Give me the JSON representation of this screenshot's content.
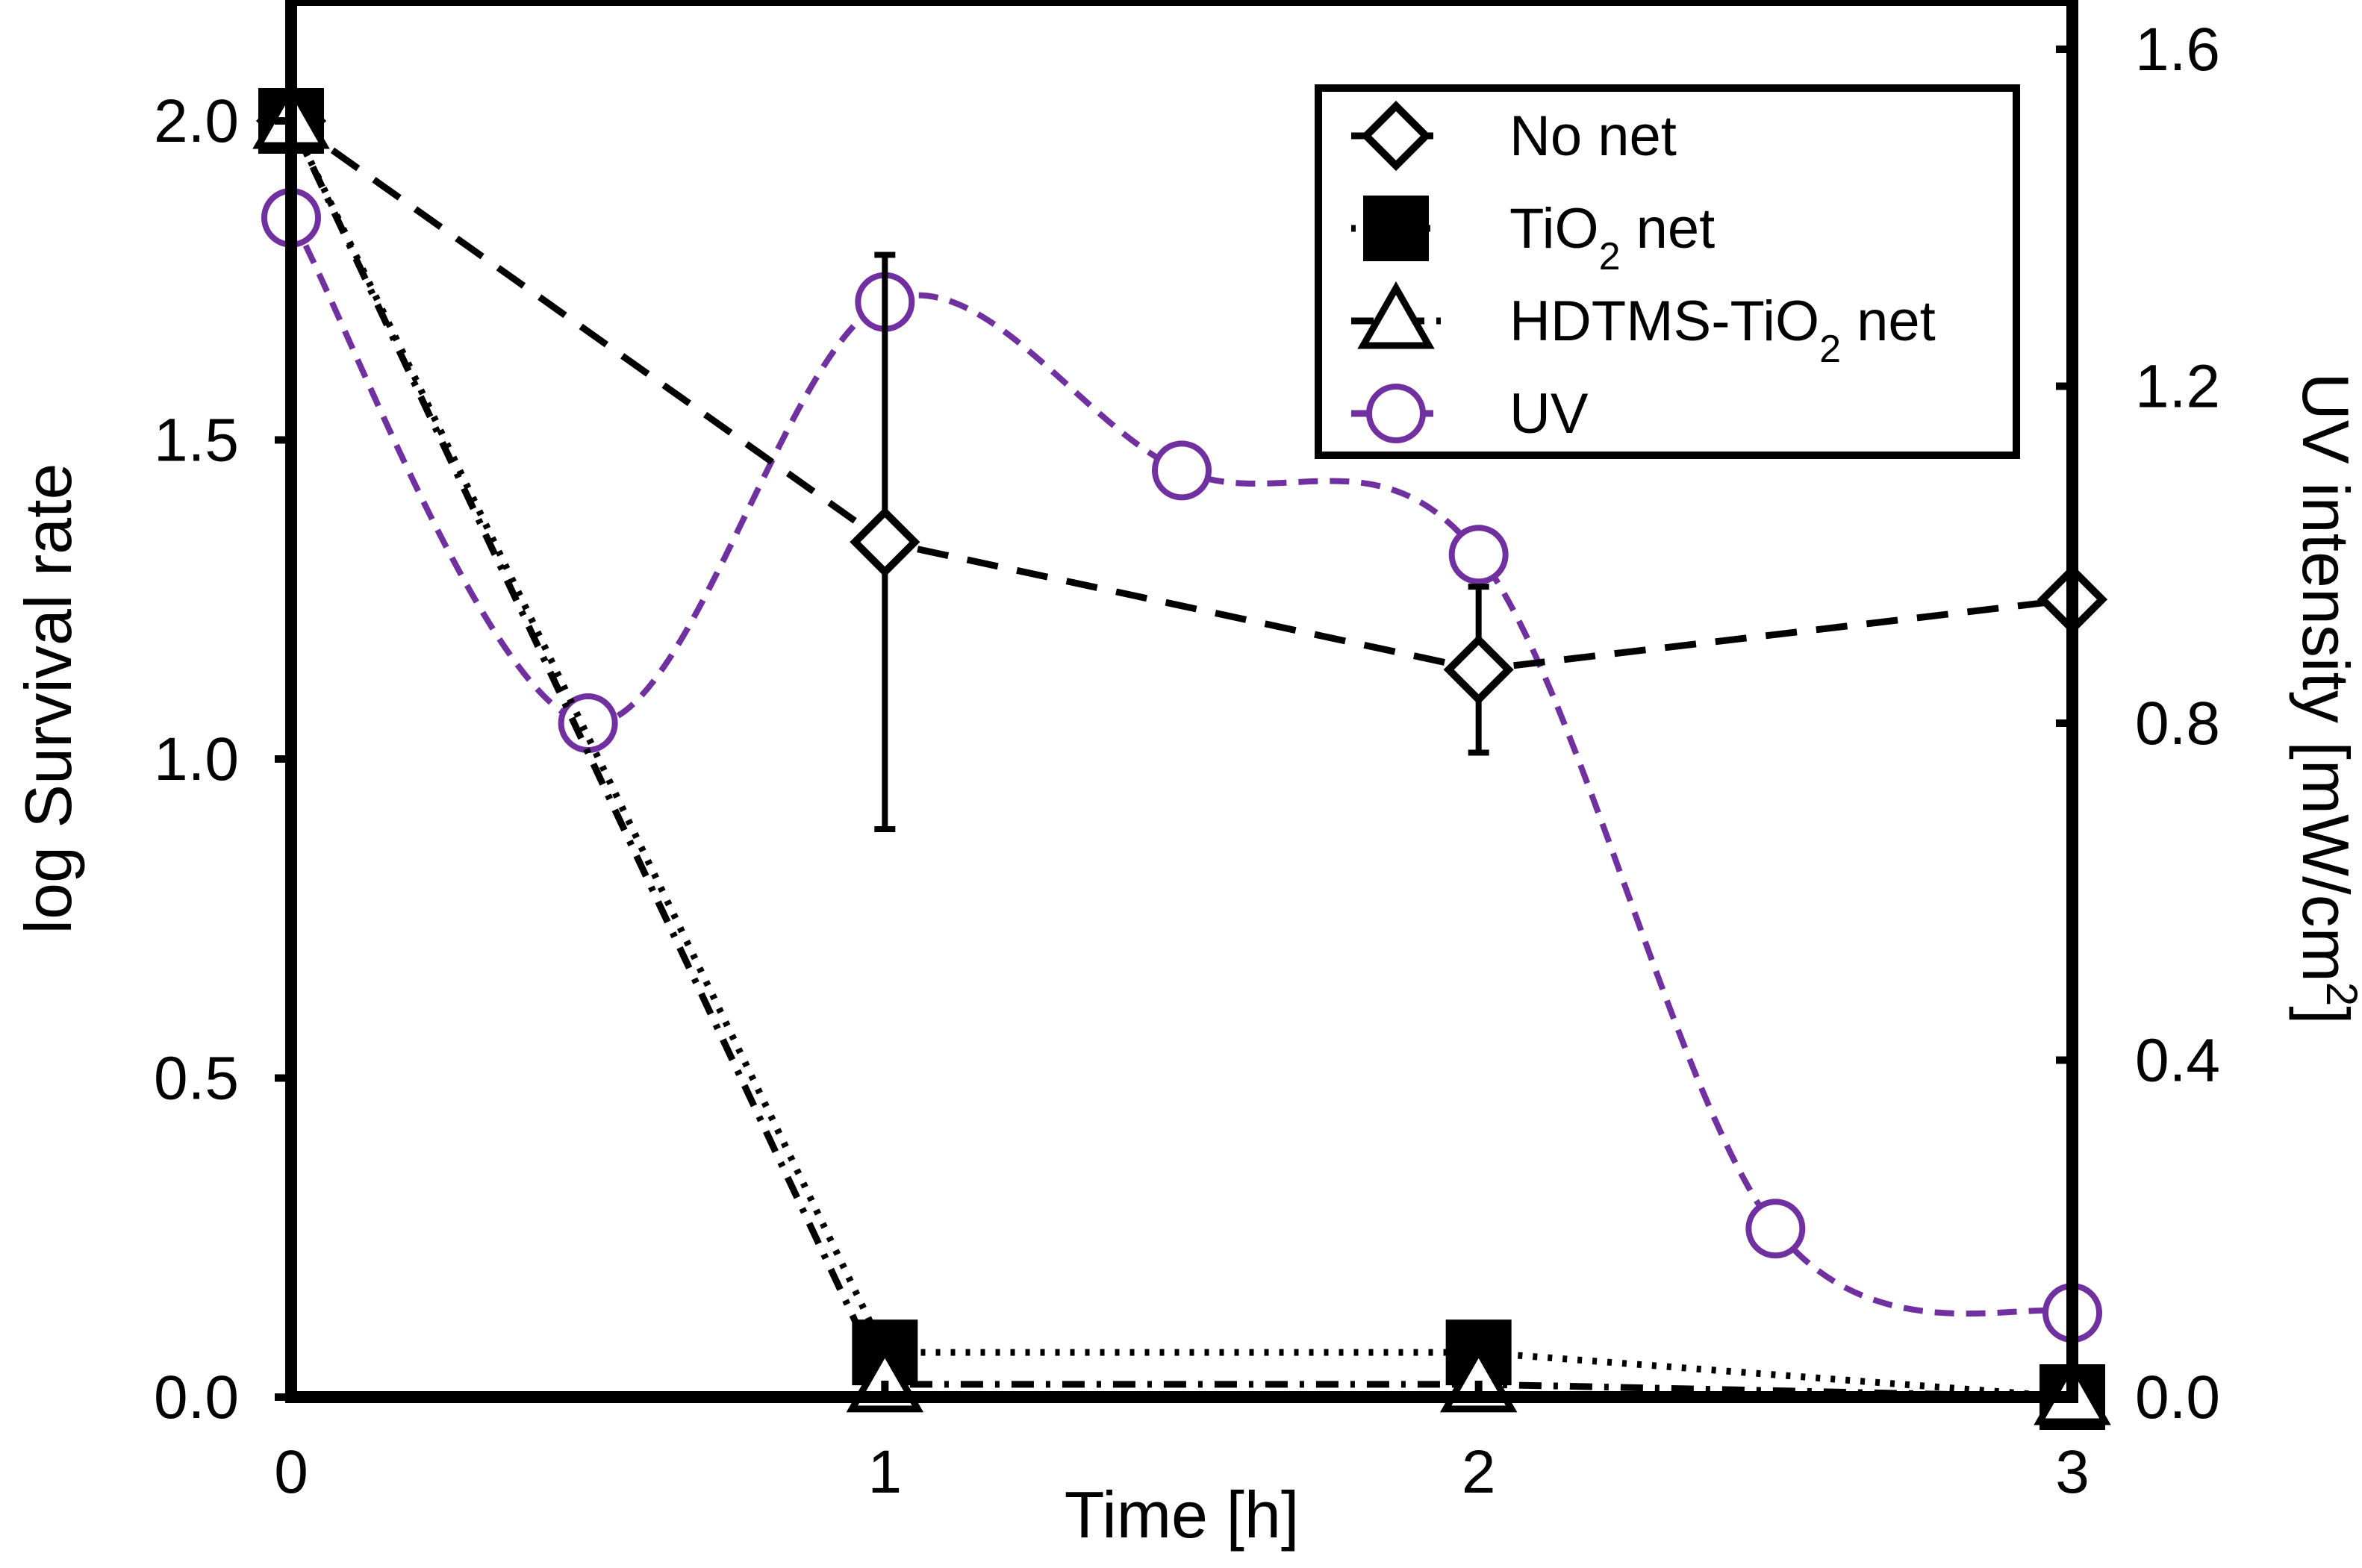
{
  "chart_data": {
    "type": "line",
    "xlabel": "Time [h]",
    "ylabel": "log Survival rate",
    "y2label": "UV intensity [mW/cm²]",
    "x_ticks": [
      "0",
      "1",
      "2",
      "3"
    ],
    "xlim": [
      0,
      3
    ],
    "ylim": [
      0,
      2.0
    ],
    "y2lim": [
      0,
      1.6
    ],
    "y_ticks": [
      "0.0",
      "0.5",
      "1.0",
      "1.5",
      "2.0"
    ],
    "y2_ticks": [
      "0.0",
      "0.4",
      "0.8",
      "1.2",
      "1.6"
    ],
    "legend_position": "top-right",
    "series": [
      {
        "name": "No net",
        "axis": "left",
        "marker": "diamond-open",
        "line": "dashed",
        "color": "#000000",
        "x": [
          0,
          1,
          2,
          3
        ],
        "y": [
          2.0,
          1.34,
          1.14,
          1.25
        ],
        "error": [
          null,
          0.45,
          0.13,
          null
        ]
      },
      {
        "name": "TiO2 net",
        "axis": "left",
        "marker": "square-filled",
        "line": "dotted",
        "color": "#000000",
        "x": [
          0,
          1,
          2,
          3
        ],
        "y": [
          2.0,
          0.07,
          0.07,
          0.0
        ]
      },
      {
        "name": "HDTMS-TiO2 net",
        "axis": "left",
        "marker": "triangle-open",
        "line": "dash-dot",
        "color": "#000000",
        "x": [
          0,
          1,
          2,
          3
        ],
        "y": [
          2.0,
          0.02,
          0.02,
          0.0
        ]
      },
      {
        "name": "UV",
        "axis": "right",
        "marker": "circle-open",
        "line": "dashed-smooth",
        "color": "#7030a0",
        "x": [
          0,
          0.5,
          1,
          1.5,
          2,
          2.5,
          3
        ],
        "y": [
          1.4,
          0.8,
          1.3,
          1.1,
          1.0,
          0.2,
          0.1
        ]
      }
    ],
    "legend_labels": [
      {
        "main": "No net",
        "sub": "",
        "tail": ""
      },
      {
        "main": "TiO",
        "sub": "2",
        "tail": " net"
      },
      {
        "main": "HDTMS-TiO",
        "sub": "2",
        "tail": " net"
      },
      {
        "main": "UV",
        "sub": "",
        "tail": ""
      }
    ],
    "y2label_parts": {
      "main": "UV intensity [mW/cm",
      "sup": "2",
      "tail": "]"
    }
  }
}
